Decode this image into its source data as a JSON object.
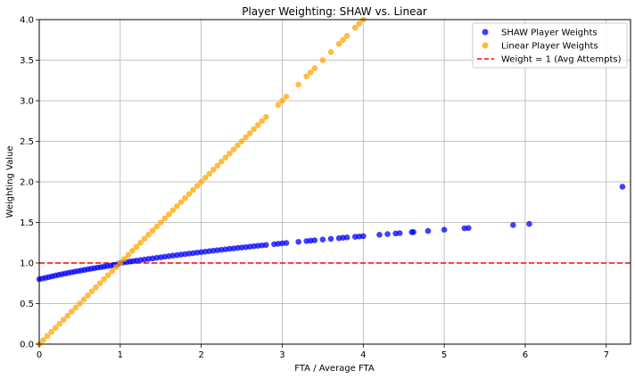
{
  "chart_data": {
    "type": "scatter",
    "title": "Player Weighting: SHAW vs. Linear",
    "xlabel": "FTA / Average FTA",
    "ylabel": "Weighting Value",
    "xlim": [
      0,
      7.3
    ],
    "ylim": [
      0,
      4.0
    ],
    "xticks": [
      0,
      1,
      2,
      3,
      4,
      5,
      6,
      7
    ],
    "yticks": [
      0.0,
      0.5,
      1.0,
      1.5,
      2.0,
      2.5,
      3.0,
      3.5,
      4.0
    ],
    "xtick_labels": [
      "0",
      "1",
      "2",
      "3",
      "4",
      "5",
      "6",
      "7"
    ],
    "ytick_labels": [
      "0.0",
      "0.5",
      "1.0",
      "1.5",
      "2.0",
      "2.5",
      "3.0",
      "3.5",
      "4.0"
    ],
    "grid": true,
    "legend_position": "top-right",
    "reference_line": {
      "name": "Weight = 1 (Avg Attempts)",
      "y": 1.0,
      "color": "#ff0000",
      "style": "dashed"
    },
    "series": [
      {
        "name": "SHAW Player Weights",
        "color": "#0000ff",
        "x": [
          0.0,
          0.04,
          0.08,
          0.12,
          0.16,
          0.2,
          0.24,
          0.28,
          0.32,
          0.36,
          0.4,
          0.44,
          0.48,
          0.52,
          0.56,
          0.6,
          0.64,
          0.68,
          0.72,
          0.76,
          0.8,
          0.84,
          0.88,
          0.92,
          0.96,
          1.0,
          1.04,
          1.08,
          1.12,
          1.16,
          1.2,
          1.25,
          1.3,
          1.35,
          1.4,
          1.45,
          1.5,
          1.55,
          1.6,
          1.65,
          1.7,
          1.75,
          1.8,
          1.85,
          1.9,
          1.95,
          2.0,
          2.05,
          2.1,
          2.15,
          2.2,
          2.25,
          2.3,
          2.35,
          2.4,
          2.45,
          2.5,
          2.55,
          2.6,
          2.65,
          2.7,
          2.75,
          2.8,
          2.9,
          2.95,
          3.0,
          3.05,
          3.2,
          3.3,
          3.35,
          3.4,
          3.5,
          3.6,
          3.7,
          3.75,
          3.8,
          3.9,
          3.95,
          4.0,
          4.2,
          4.3,
          4.4,
          4.45,
          4.6,
          4.62,
          4.8,
          5.0,
          5.25,
          5.3,
          5.85,
          6.05,
          7.2
        ],
        "y": [
          0.8,
          0.809,
          0.818,
          0.827,
          0.836,
          0.845,
          0.854,
          0.862,
          0.87,
          0.878,
          0.886,
          0.894,
          0.901,
          0.908,
          0.915,
          0.922,
          0.929,
          0.936,
          0.943,
          0.949,
          0.956,
          0.962,
          0.968,
          0.975,
          0.981,
          1.0,
          1.006,
          1.012,
          1.018,
          1.023,
          1.029,
          1.036,
          1.043,
          1.05,
          1.057,
          1.064,
          1.071,
          1.078,
          1.084,
          1.091,
          1.097,
          1.104,
          1.11,
          1.116,
          1.122,
          1.128,
          1.134,
          1.14,
          1.146,
          1.152,
          1.158,
          1.163,
          1.169,
          1.175,
          1.18,
          1.186,
          1.191,
          1.196,
          1.202,
          1.207,
          1.212,
          1.217,
          1.222,
          1.232,
          1.237,
          1.242,
          1.247,
          1.261,
          1.27,
          1.275,
          1.28,
          1.289,
          1.298,
          1.306,
          1.311,
          1.315,
          1.323,
          1.327,
          1.331,
          1.348,
          1.356,
          1.364,
          1.368,
          1.38,
          1.381,
          1.395,
          1.41,
          1.428,
          1.431,
          1.468,
          1.481,
          1.94
        ]
      },
      {
        "name": "Linear Player Weights",
        "color": "#ffa500",
        "x": [
          0.0,
          0.05,
          0.1,
          0.15,
          0.2,
          0.25,
          0.3,
          0.35,
          0.4,
          0.45,
          0.5,
          0.55,
          0.6,
          0.65,
          0.7,
          0.75,
          0.8,
          0.85,
          0.9,
          0.95,
          1.0,
          1.05,
          1.1,
          1.15,
          1.2,
          1.25,
          1.3,
          1.35,
          1.4,
          1.45,
          1.5,
          1.55,
          1.6,
          1.65,
          1.7,
          1.75,
          1.8,
          1.85,
          1.9,
          1.95,
          2.0,
          2.05,
          2.1,
          2.15,
          2.2,
          2.25,
          2.3,
          2.35,
          2.4,
          2.45,
          2.5,
          2.55,
          2.6,
          2.65,
          2.7,
          2.75,
          2.8,
          2.95,
          3.0,
          3.05,
          3.2,
          3.3,
          3.35,
          3.4,
          3.5,
          3.6,
          3.7,
          3.75,
          3.8,
          3.9,
          3.95,
          4.0
        ],
        "y": [
          0.0,
          0.05,
          0.1,
          0.15,
          0.2,
          0.25,
          0.3,
          0.35,
          0.4,
          0.45,
          0.5,
          0.55,
          0.6,
          0.65,
          0.7,
          0.75,
          0.8,
          0.85,
          0.9,
          0.95,
          1.0,
          1.05,
          1.1,
          1.15,
          1.2,
          1.25,
          1.3,
          1.35,
          1.4,
          1.45,
          1.5,
          1.55,
          1.6,
          1.65,
          1.7,
          1.75,
          1.8,
          1.85,
          1.9,
          1.95,
          2.0,
          2.05,
          2.1,
          2.15,
          2.2,
          2.25,
          2.3,
          2.35,
          2.4,
          2.45,
          2.5,
          2.55,
          2.6,
          2.65,
          2.7,
          2.75,
          2.8,
          2.95,
          3.0,
          3.05,
          3.2,
          3.3,
          3.35,
          3.4,
          3.5,
          3.6,
          3.7,
          3.75,
          3.8,
          3.9,
          3.95,
          4.0
        ]
      }
    ]
  },
  "legend": {
    "items": [
      {
        "label": "SHAW Player Weights",
        "kind": "marker",
        "color": "#0000ff"
      },
      {
        "label": "Linear Player Weights",
        "kind": "marker",
        "color": "#ffa500"
      },
      {
        "label": "Weight = 1 (Avg Attempts)",
        "kind": "dashed-line",
        "color": "#ff0000"
      }
    ]
  }
}
